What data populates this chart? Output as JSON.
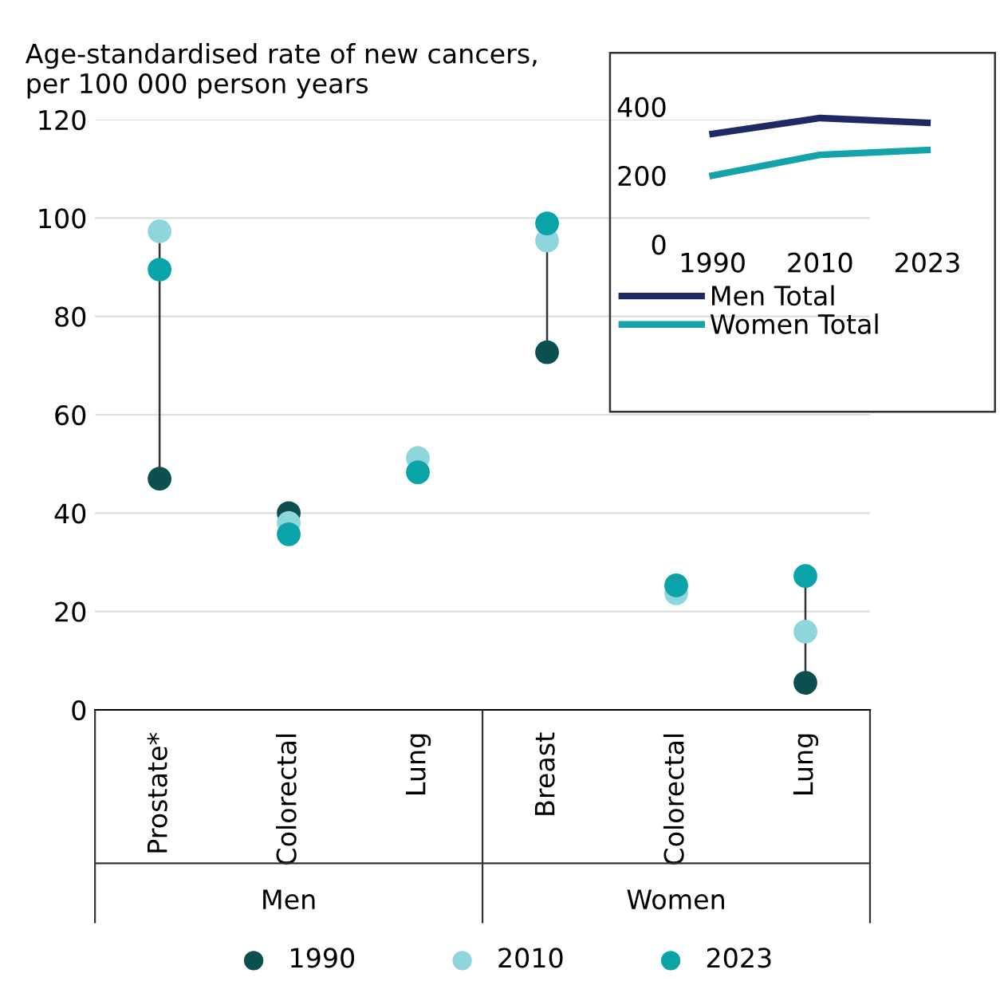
{
  "chart_data": [
    {
      "type": "scatter",
      "title": "Age-standardised rate of new cancers,\nper 100 000 person years",
      "categories": [
        "Prostate*",
        "Colorectal",
        "Lung",
        "Breast",
        "Colorectal",
        "Lung"
      ],
      "series": [
        {
          "name": "1990",
          "color": "#0b4f4f",
          "values": [
            47,
            40,
            null,
            72.7,
            null,
            5.5
          ]
        },
        {
          "name": "2010",
          "color": "#8fd6dc",
          "values": [
            97.3,
            38,
            51.2,
            95.4,
            23.7,
            15.9
          ]
        },
        {
          "name": "2023",
          "color": "#0aa3a8",
          "values": [
            89.5,
            35.7,
            48.3,
            98.9,
            25.3,
            27.2
          ]
        }
      ],
      "ylim": [
        0,
        120
      ],
      "yticks": [
        0,
        20,
        40,
        60,
        80,
        100,
        120
      ],
      "grid": "y",
      "legend": "bottom",
      "marker": "circle",
      "annotations": [
        "Men",
        "Women"
      ]
    },
    {
      "type": "line",
      "categories": [
        "1990",
        "2010",
        "2023"
      ],
      "series": [
        {
          "name": "Men Total",
          "color": "#1f2a63",
          "values": [
            321,
            367,
            353
          ]
        },
        {
          "name": "Women Total",
          "color": "#14a3a8",
          "values": [
            200,
            260,
            274
          ]
        }
      ],
      "ylim": [
        0,
        400
      ],
      "yticks": [
        0,
        200,
        400
      ],
      "grid": false,
      "legend": "bottom",
      "marker": "none"
    }
  ]
}
